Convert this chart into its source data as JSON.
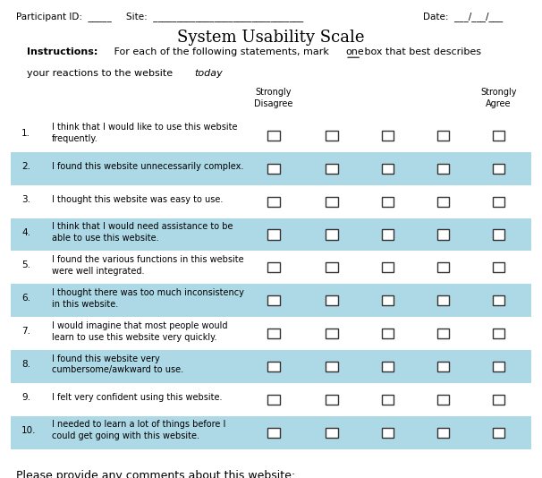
{
  "title": "System Usability Scale",
  "header_line": "Participant ID:  _____     Site:  ________________________________     Date:  ___/___/___",
  "instructions_bold": "Instructions:",
  "instructions_normal": "  For each of the following statements, mark ",
  "instructions_underline": "one",
  "instructions_end": " box that best describes\nyour reactions to the website ",
  "instructions_italic": "today",
  "instructions_final": ".",
  "col_header_left": "Strongly\nDisagree",
  "col_header_right": "Strongly\nAgree",
  "questions": [
    {
      "num": "1.",
      "text": "I think that I would like to use this website\nfrequently.",
      "shaded": false
    },
    {
      "num": "2.",
      "text": "I found this website unnecessarily complex.",
      "shaded": true
    },
    {
      "num": "3.",
      "text": "I thought this website was easy to use.",
      "shaded": false
    },
    {
      "num": "4.",
      "text": "I think that I would need assistance to be\nable to use this website.",
      "shaded": true
    },
    {
      "num": "5.",
      "text": "I found the various functions in this website\nwere well integrated.",
      "shaded": false
    },
    {
      "num": "6.",
      "text": "I thought there was too much inconsistency\nin this website.",
      "shaded": true
    },
    {
      "num": "7.",
      "text": "I would imagine that most people would\nlearn to use this website very quickly.",
      "shaded": false
    },
    {
      "num": "8.",
      "text": "I found this website very\ncumbersome/awkward to use.",
      "shaded": true
    },
    {
      "num": "9.",
      "text": "I felt very confident using this website.",
      "shaded": false
    },
    {
      "num": "10.",
      "text": "I needed to learn a lot of things before I\ncould get going with this website.",
      "shaded": true
    }
  ],
  "footer": "Please provide any comments about this website:",
  "shade_color": "#add8e6",
  "bg_color": "#ffffff",
  "box_color": "#333333",
  "text_color": "#000000",
  "num_checkboxes": 5,
  "checkbox_size": 0.018
}
